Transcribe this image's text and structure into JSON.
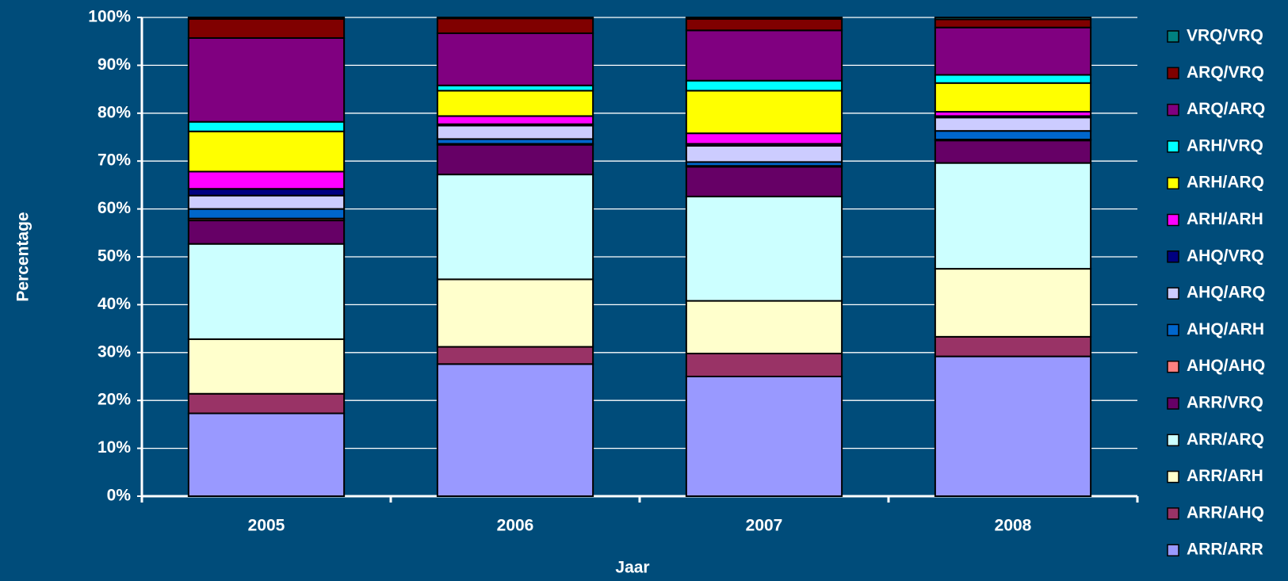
{
  "chart_data": {
    "type": "stacked_bar_100",
    "x_label": "Jaar",
    "y_label": "Percentage",
    "categories": [
      "2005",
      "2006",
      "2007",
      "2008"
    ],
    "ylim": [
      0,
      100
    ],
    "yticks": [
      {
        "value": 0,
        "label": "0%"
      },
      {
        "value": 10,
        "label": "10%"
      },
      {
        "value": 20,
        "label": "20%"
      },
      {
        "value": 30,
        "label": "30%"
      },
      {
        "value": 40,
        "label": "40%"
      },
      {
        "value": 50,
        "label": "50%"
      },
      {
        "value": 60,
        "label": "60%"
      },
      {
        "value": 70,
        "label": "70%"
      },
      {
        "value": 80,
        "label": "80%"
      },
      {
        "value": 90,
        "label": "90%"
      },
      {
        "value": 100,
        "label": "100%"
      }
    ],
    "grid": true,
    "legend": "right",
    "series": [
      {
        "name": "ARR/ARR",
        "color": "#9999ff",
        "values": [
          17.3,
          27.6,
          25.0,
          29.2
        ]
      },
      {
        "name": "ARR/AHQ",
        "color": "#993366",
        "values": [
          4.1,
          3.6,
          4.8,
          4.1
        ]
      },
      {
        "name": "ARR/ARH",
        "color": "#ffffcc",
        "values": [
          11.4,
          14.1,
          11.0,
          14.2
        ]
      },
      {
        "name": "ARR/ARQ",
        "color": "#ccffff",
        "values": [
          19.9,
          21.9,
          21.8,
          22.1
        ]
      },
      {
        "name": "ARR/VRQ",
        "color": "#660066",
        "values": [
          4.9,
          6.2,
          6.2,
          4.7
        ]
      },
      {
        "name": "AHQ/AHQ",
        "color": "#ff8080",
        "values": [
          0.4,
          0.2,
          0.2,
          0.2
        ]
      },
      {
        "name": "AHQ/ARH",
        "color": "#0066cc",
        "values": [
          2.0,
          1.0,
          0.8,
          1.8
        ]
      },
      {
        "name": "AHQ/ARQ",
        "color": "#ccccff",
        "values": [
          2.8,
          2.8,
          3.4,
          2.8
        ]
      },
      {
        "name": "AHQ/VRQ",
        "color": "#000080",
        "values": [
          1.4,
          0.3,
          0.4,
          0.3
        ]
      },
      {
        "name": "ARH/ARH",
        "color": "#ff00ff",
        "values": [
          3.6,
          1.7,
          2.2,
          0.9
        ]
      },
      {
        "name": "ARH/ARQ",
        "color": "#ffff00",
        "values": [
          8.4,
          5.3,
          8.9,
          6.0
        ]
      },
      {
        "name": "ARH/VRQ",
        "color": "#00ffff",
        "values": [
          2.0,
          1.1,
          2.1,
          1.7
        ]
      },
      {
        "name": "ARQ/ARQ",
        "color": "#800080",
        "values": [
          17.5,
          10.9,
          10.5,
          9.9
        ]
      },
      {
        "name": "ARQ/VRQ",
        "color": "#800000",
        "values": [
          4.0,
          3.1,
          2.4,
          1.7
        ]
      },
      {
        "name": "VRQ/VRQ",
        "color": "#008080",
        "values": [
          0.3,
          0.2,
          0.3,
          0.4
        ]
      }
    ]
  }
}
